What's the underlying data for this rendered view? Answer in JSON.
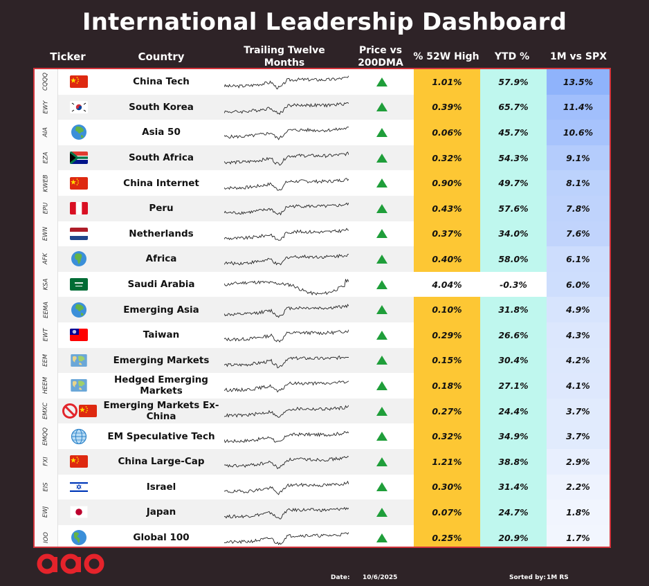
{
  "title": "International Leadership Dashboard",
  "headers": {
    "ticker": "Ticker",
    "country": "Country",
    "ttm": "Trailing Twelve Months",
    "price_vs_200dma": "Price vs 200DMA",
    "pct_52w_high": "% 52W High",
    "ytd": "YTD %",
    "one_m_vs_spx": "1M vs SPX"
  },
  "colors": {
    "background": "#2e2327",
    "border": "#d4343c",
    "up_arrow": "#1f9e3a",
    "high_fill": "#fdc734",
    "ytd_fill": "#bff7ee",
    "spx_strong": "#8fb3fb",
    "spx_weak": "#f4f7fe"
  },
  "rows": [
    {
      "ticker": "CQQQ",
      "flag": "china",
      "country": "China Tech",
      "trend": "up-icon",
      "pct_52w_high": "1.01%",
      "ytd": "57.9%",
      "spx": "13.5%",
      "spx_value": 13.5,
      "near_high": true
    },
    {
      "ticker": "EWY",
      "flag": "south-korea",
      "country": "South Korea",
      "trend": "up-icon",
      "pct_52w_high": "0.39%",
      "ytd": "65.7%",
      "spx": "11.4%",
      "spx_value": 11.4,
      "near_high": true
    },
    {
      "ticker": "AIA",
      "flag": "globe-asia",
      "country": "Asia 50",
      "trend": "up-icon",
      "pct_52w_high": "0.06%",
      "ytd": "45.7%",
      "spx": "10.6%",
      "spx_value": 10.6,
      "near_high": true
    },
    {
      "ticker": "EZA",
      "flag": "south-africa",
      "country": "South Africa",
      "trend": "up-icon",
      "pct_52w_high": "0.32%",
      "ytd": "54.3%",
      "spx": "9.1%",
      "spx_value": 9.1,
      "near_high": true
    },
    {
      "ticker": "KWEB",
      "flag": "china",
      "country": "China Internet",
      "trend": "up-icon",
      "pct_52w_high": "0.90%",
      "ytd": "49.7%",
      "spx": "8.1%",
      "spx_value": 8.1,
      "near_high": true
    },
    {
      "ticker": "EPU",
      "flag": "peru",
      "country": "Peru",
      "trend": "up-icon",
      "pct_52w_high": "0.43%",
      "ytd": "57.6%",
      "spx": "7.8%",
      "spx_value": 7.8,
      "near_high": true
    },
    {
      "ticker": "EWN",
      "flag": "netherlands",
      "country": "Netherlands",
      "trend": "up-icon",
      "pct_52w_high": "0.37%",
      "ytd": "34.0%",
      "spx": "7.6%",
      "spx_value": 7.6,
      "near_high": true
    },
    {
      "ticker": "AFK",
      "flag": "globe-africa",
      "country": "Africa",
      "trend": "up-icon",
      "pct_52w_high": "0.40%",
      "ytd": "58.0%",
      "spx": "6.1%",
      "spx_value": 6.1,
      "near_high": true
    },
    {
      "ticker": "KSA",
      "flag": "saudi-arabia",
      "country": "Saudi Arabia",
      "trend": "up-icon",
      "pct_52w_high": "4.04%",
      "ytd": "-0.3%",
      "spx": "6.0%",
      "spx_value": 6.0,
      "near_high": false
    },
    {
      "ticker": "EEMA",
      "flag": "globe-asia",
      "country": "Emerging Asia",
      "trend": "up-icon",
      "pct_52w_high": "0.10%",
      "ytd": "31.8%",
      "spx": "4.9%",
      "spx_value": 4.9,
      "near_high": true
    },
    {
      "ticker": "EWT",
      "flag": "taiwan",
      "country": "Taiwan",
      "trend": "up-icon",
      "pct_52w_high": "0.29%",
      "ytd": "26.6%",
      "spx": "4.3%",
      "spx_value": 4.3,
      "near_high": true
    },
    {
      "ticker": "EEM",
      "flag": "world-map",
      "country": "Emerging Markets",
      "trend": "up-icon",
      "pct_52w_high": "0.15%",
      "ytd": "30.4%",
      "spx": "4.2%",
      "spx_value": 4.2,
      "near_high": true
    },
    {
      "ticker": "HEEM",
      "flag": "world-map",
      "country": "Hedged Emerging Markets",
      "trend": "up-icon",
      "pct_52w_high": "0.18%",
      "ytd": "27.1%",
      "spx": "4.1%",
      "spx_value": 4.1,
      "near_high": true
    },
    {
      "ticker": "EMXC",
      "flag": "no-china",
      "country": "Emerging Markets Ex-China",
      "trend": "up-icon",
      "pct_52w_high": "0.27%",
      "ytd": "24.4%",
      "spx": "3.7%",
      "spx_value": 3.7,
      "near_high": true
    },
    {
      "ticker": "EMQQ",
      "flag": "globe-meridians",
      "country": "EM Speculative Tech",
      "trend": "up-icon",
      "pct_52w_high": "0.32%",
      "ytd": "34.9%",
      "spx": "3.7%",
      "spx_value": 3.7,
      "near_high": true
    },
    {
      "ticker": "FXI",
      "flag": "china",
      "country": "China Large-Cap",
      "trend": "up-icon",
      "pct_52w_high": "1.21%",
      "ytd": "38.8%",
      "spx": "2.9%",
      "spx_value": 2.9,
      "near_high": true
    },
    {
      "ticker": "EIS",
      "flag": "israel",
      "country": "Israel",
      "trend": "up-icon",
      "pct_52w_high": "0.30%",
      "ytd": "31.4%",
      "spx": "2.2%",
      "spx_value": 2.2,
      "near_high": true
    },
    {
      "ticker": "EWJ",
      "flag": "japan",
      "country": "Japan",
      "trend": "up-icon",
      "pct_52w_high": "0.07%",
      "ytd": "24.7%",
      "spx": "1.8%",
      "spx_value": 1.8,
      "near_high": true
    },
    {
      "ticker": "IOO",
      "flag": "globe-americas",
      "country": "Global 100",
      "trend": "up-icon",
      "pct_52w_high": "0.25%",
      "ytd": "20.9%",
      "spx": "1.7%",
      "spx_value": 1.7,
      "near_high": true
    }
  ],
  "footer": {
    "date_label": "Date:",
    "date_value": "10/6/2025",
    "sorted_label": "Sorted by:",
    "sorted_value": "1M RS"
  },
  "logo": "brand-logo-icon"
}
